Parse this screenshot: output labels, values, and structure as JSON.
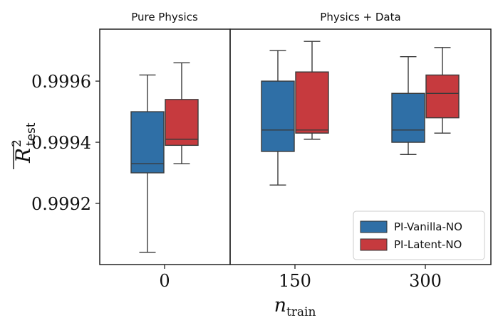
{
  "chart_data": {
    "type": "box",
    "panels": [
      {
        "title": "Pure Physics",
        "categories": [
          "0"
        ]
      },
      {
        "title": "Physics + Data",
        "categories": [
          "150",
          "300"
        ]
      }
    ],
    "xlabel_main": "n",
    "xlabel_sub": "train",
    "ylabel_main": "R",
    "ylabel_sup": "2",
    "ylabel_sub": "test",
    "ylim": [
      0.999,
      0.99977
    ],
    "yticks": [
      0.9992,
      0.9994,
      0.9996
    ],
    "ytick_labels": [
      "0.9992",
      "0.9994",
      "0.9996"
    ],
    "series": [
      {
        "name": "PI-Vanilla-NO",
        "color": "#2f6fa6",
        "boxes": [
          {
            "category": "0",
            "whislo": 0.99904,
            "q1": 0.9993,
            "med": 0.99933,
            "q3": 0.9995,
            "whishi": 0.99962
          },
          {
            "category": "150",
            "whislo": 0.99926,
            "q1": 0.99937,
            "med": 0.99944,
            "q3": 0.9996,
            "whishi": 0.9997
          },
          {
            "category": "300",
            "whislo": 0.99936,
            "q1": 0.9994,
            "med": 0.99944,
            "q3": 0.99956,
            "whishi": 0.99968
          }
        ]
      },
      {
        "name": "PI-Latent-NO",
        "color": "#c63a3e",
        "boxes": [
          {
            "category": "0",
            "whislo": 0.99933,
            "q1": 0.99939,
            "med": 0.99941,
            "q3": 0.99954,
            "whishi": 0.99966
          },
          {
            "category": "150",
            "whislo": 0.99941,
            "q1": 0.99943,
            "med": 0.99944,
            "q3": 0.99963,
            "whishi": 0.99973
          },
          {
            "category": "300",
            "whislo": 0.99943,
            "q1": 0.99948,
            "med": 0.99956,
            "q3": 0.99962,
            "whishi": 0.99971
          }
        ]
      }
    ],
    "legend_position": "bottom-right"
  }
}
